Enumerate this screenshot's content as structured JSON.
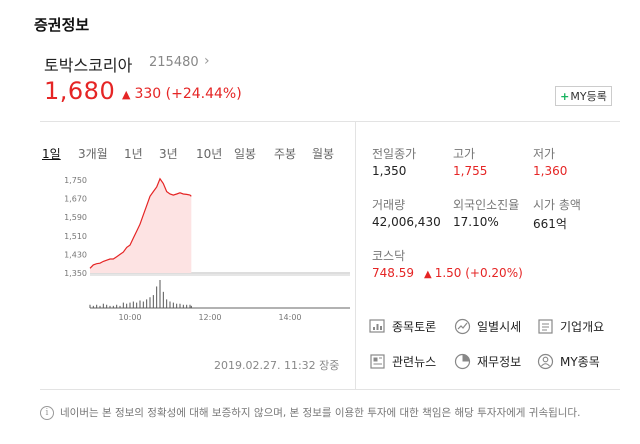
{
  "section_title": "증권정보",
  "stock": {
    "name": "토박스코리아",
    "code": "215480",
    "price": "1,680",
    "change_arrow": "▲",
    "change": "330 (+24.44%)",
    "my_button": "MY등록"
  },
  "period_tabs": [
    "1일",
    "3개월",
    "1년",
    "3년",
    "10년",
    "일봉",
    "주봉",
    "월봉"
  ],
  "active_tab": "1일",
  "chart_data": {
    "type": "area",
    "y_ticks": [
      "1,750",
      "1,670",
      "1,590",
      "1,510",
      "1,430",
      "1,350"
    ],
    "x_ticks": [
      "10:00",
      "12:00",
      "14:00"
    ],
    "ylim": [
      1350,
      1750
    ],
    "prev_close": 1350,
    "x": [
      "09:00",
      "09:05",
      "09:10",
      "09:15",
      "09:20",
      "09:25",
      "09:30",
      "09:35",
      "09:40",
      "09:45",
      "09:50",
      "09:55",
      "10:00",
      "10:05",
      "10:10",
      "10:15",
      "10:20",
      "10:25",
      "10:30",
      "10:35",
      "10:40",
      "10:45",
      "10:50",
      "10:55",
      "11:00",
      "11:05",
      "11:10",
      "11:15",
      "11:20",
      "11:25",
      "11:30",
      "11:32"
    ],
    "values": [
      1370,
      1385,
      1390,
      1392,
      1400,
      1405,
      1410,
      1410,
      1420,
      1430,
      1440,
      1460,
      1470,
      1500,
      1530,
      1560,
      1600,
      1640,
      1680,
      1700,
      1720,
      1755,
      1735,
      1700,
      1690,
      1685,
      1690,
      1695,
      1690,
      1688,
      1685,
      1680
    ],
    "volume": [
      3,
      2,
      3,
      2,
      4,
      3,
      2,
      2,
      3,
      2,
      5,
      4,
      5,
      6,
      5,
      7,
      6,
      8,
      10,
      12,
      20,
      26,
      15,
      8,
      6,
      5,
      4,
      4,
      3,
      3,
      3,
      2
    ]
  },
  "datetime": "2019.02.27. 11:32 장중",
  "stats": [
    {
      "label": "전일종가",
      "value": "1,350",
      "color": "#222222"
    },
    {
      "label": "고가",
      "value": "1,755",
      "color": "#e52525"
    },
    {
      "label": "저가",
      "value": "1,360",
      "color": "#e52525"
    },
    {
      "label": "거래량",
      "value": "42,006,430",
      "color": "#222222"
    },
    {
      "label": "외국인소진율",
      "value": "17.10%",
      "color": "#222222"
    },
    {
      "label": "시가 총액",
      "value": "661억",
      "color": "#222222"
    }
  ],
  "index": {
    "label": "코스닥",
    "value": "748.59",
    "change_arrow": "▲",
    "change": "1.50 (+0.20%)"
  },
  "links": [
    {
      "label": "종목토론",
      "icon": "discussion-chart-icon"
    },
    {
      "label": "일별시세",
      "icon": "trend-chart-icon"
    },
    {
      "label": "기업개요",
      "icon": "company-list-icon"
    },
    {
      "label": "관련뉴스",
      "icon": "news-icon"
    },
    {
      "label": "재무정보",
      "icon": "pie-chart-icon"
    },
    {
      "label": "MY종목",
      "icon": "user-icon"
    }
  ],
  "notice": "네이버는 본 정보의 정확성에 대해 보증하지 않으며, 본 정보를 이용한 투자에 대한 책임은 해당 투자자에게 귀속됩니다.",
  "colors": {
    "up": "#e52525",
    "area_fill": "#fde3e3",
    "accent_green": "#19b35f"
  }
}
